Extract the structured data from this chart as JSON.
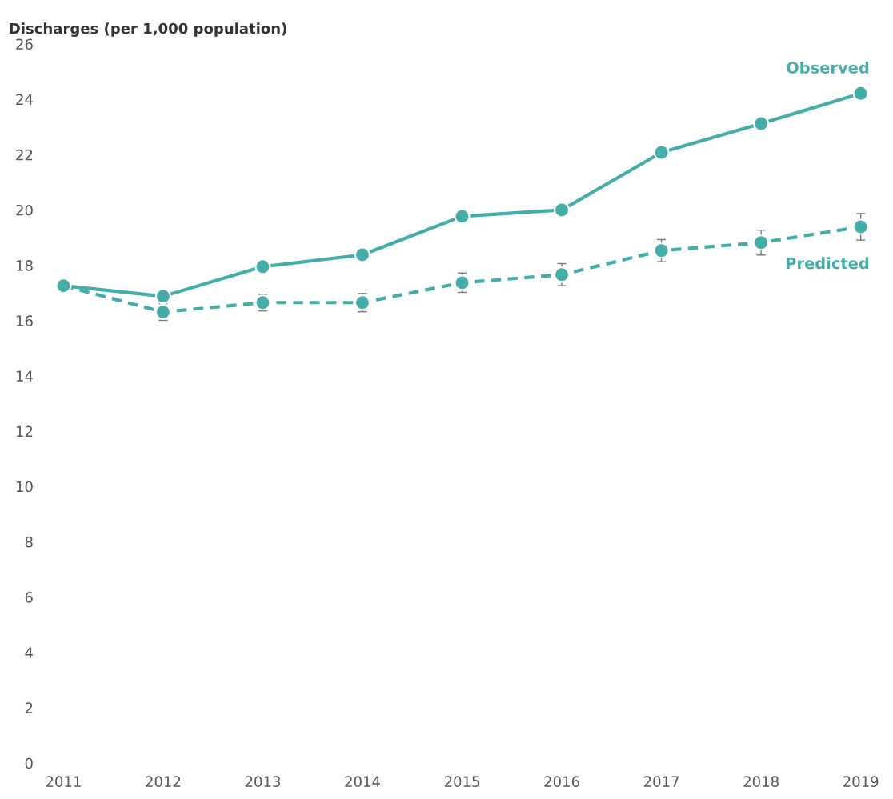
{
  "chart_data": {
    "type": "line",
    "ylabel": "Discharges (per 1,000 population)",
    "categories": [
      "2011",
      "2012",
      "2013",
      "2014",
      "2015",
      "2016",
      "2017",
      "2018",
      "2019"
    ],
    "ylim": [
      0,
      26
    ],
    "yticks": [
      0,
      2,
      4,
      6,
      8,
      10,
      12,
      14,
      16,
      18,
      20,
      22,
      24,
      26
    ],
    "grid": false,
    "legend": false,
    "marker": "circle",
    "series": [
      {
        "name": "Observed",
        "color": "#45ada8",
        "line_style": "solid",
        "values": [
          17.26,
          16.88,
          17.95,
          18.38,
          19.77,
          20.0,
          22.08,
          23.12,
          24.21
        ]
      },
      {
        "name": "Predicted",
        "color": "#45ada8",
        "line_style": "dashed",
        "values": [
          17.26,
          16.31,
          16.65,
          16.65,
          17.37,
          17.66,
          18.53,
          18.82,
          19.39
        ],
        "errors": [
          null,
          0.3,
          0.3,
          0.33,
          0.35,
          0.4,
          0.4,
          0.45,
          0.48
        ]
      }
    ]
  }
}
